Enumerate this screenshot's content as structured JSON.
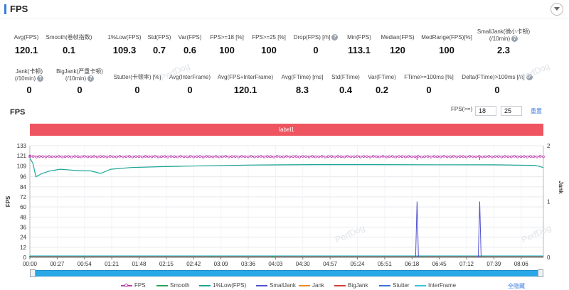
{
  "header": {
    "title": "FPS"
  },
  "stats_row1": [
    {
      "label": "Avg(FPS)",
      "value": "120.1",
      "help": false
    },
    {
      "label": "Smooth(卷帧指数)",
      "value": "0.1",
      "help": false
    },
    {
      "label": "1%Low(FPS)",
      "value": "109.3",
      "help": false
    },
    {
      "label": "Std(FPS)",
      "value": "0.7",
      "help": false
    },
    {
      "label": "Var(FPS)",
      "value": "0.6",
      "help": false
    },
    {
      "label": "FPS>=18 [%]",
      "value": "100",
      "help": false
    },
    {
      "label": "FPS>=25 [%]",
      "value": "100",
      "help": false
    },
    {
      "label": "Drop(FPS) [/h]",
      "value": "0",
      "help": true
    },
    {
      "label": "Min(FPS)",
      "value": "113.1",
      "help": false
    },
    {
      "label": "Median(FPS)",
      "value": "120",
      "help": false
    },
    {
      "label": "MedRange(FPS)[%]",
      "value": "100",
      "help": false
    },
    {
      "label": "SmallJank(微小卡顿)",
      "label2": "(/10min)",
      "value": "2.3",
      "help": true
    }
  ],
  "stats_row2": [
    {
      "label": "Jank(卡顿)",
      "label2": "(/10min)",
      "value": "0",
      "help": true
    },
    {
      "label": "BigJank(严重卡顿)",
      "label2": "(/10min)",
      "value": "0",
      "help": true
    },
    {
      "label": "Stutter(卡顿率) [%]",
      "value": "0",
      "help": false
    },
    {
      "label": "Avg(InterFrame)",
      "value": "0",
      "help": false
    },
    {
      "label": "Avg(FPS+InterFrame)",
      "value": "120.1",
      "help": false
    },
    {
      "label": "Avg(FTime) [ms]",
      "value": "8.3",
      "help": false
    },
    {
      "label": "Std(FTime)",
      "value": "0.4",
      "help": false
    },
    {
      "label": "Var(FTime)",
      "value": "0.2",
      "help": false
    },
    {
      "label": "FTime>=100ms [%]",
      "value": "0",
      "help": false
    },
    {
      "label": "Delta(FTime)>100ms [/h]",
      "value": "0",
      "help": true
    }
  ],
  "chart_section": {
    "title": "FPS",
    "filter_label": "FPS(>=)",
    "filter_value_1": "18",
    "filter_value_2": "25",
    "reset_label": "重置",
    "label_bar": "label1",
    "hide_all": "全隐藏",
    "watermark": "PerfDog"
  },
  "chart_data": {
    "type": "line",
    "ylabel_left": "FPS",
    "ylabel_right": "Jank",
    "y_left_ticks": [
      "0",
      "12",
      "24",
      "36",
      "48",
      "60",
      "72",
      "84",
      "96",
      "109",
      "121",
      "133"
    ],
    "y_left_range": [
      0,
      133
    ],
    "y_right_ticks": [
      "0",
      "1",
      "2"
    ],
    "y_right_range": [
      0,
      2
    ],
    "x_ticks": [
      "00:00",
      "00:27",
      "00:54",
      "01:21",
      "01:48",
      "02:15",
      "02:42",
      "03:09",
      "03:36",
      "04:03",
      "04:30",
      "04:57",
      "05:24",
      "05:51",
      "06:18",
      "06:45",
      "07:12",
      "07:39",
      "08:06"
    ],
    "x_range_seconds": [
      0,
      508
    ],
    "series": [
      {
        "name": "FPS",
        "color": "#c03fb0",
        "marker": true,
        "approx_value": 120
      },
      {
        "name": "Smooth",
        "color": "#2aa55a",
        "marker": false,
        "approx_value": 0
      },
      {
        "name": "1%Low(FPS)",
        "color": "#1aa596",
        "marker": false,
        "x": [
          0,
          3,
          6,
          12,
          20,
          30,
          40,
          50,
          60,
          70,
          80,
          100,
          130,
          170,
          220,
          280,
          340,
          400,
          460,
          500,
          508
        ],
        "values": [
          118,
          112,
          96,
          100,
          103,
          105,
          104,
          103,
          103,
          100,
          105,
          107,
          108,
          109,
          110,
          110.5,
          110.5,
          110.3,
          110.2,
          109.5,
          107
        ]
      },
      {
        "name": "SmallJank",
        "color": "#5050d0",
        "marker": false,
        "spikes": [
          {
            "x": 383,
            "value": 1
          },
          {
            "x": 445,
            "value": 1
          }
        ]
      },
      {
        "name": "Jank",
        "color": "#f08a20",
        "marker": false,
        "approx_value": 0
      },
      {
        "name": "BigJank",
        "color": "#d83a3a",
        "marker": false,
        "approx_value": 0
      },
      {
        "name": "Stutter",
        "color": "#3a6fd8",
        "marker": false,
        "approx_value": 0
      },
      {
        "name": "InterFrame",
        "color": "#35c5d5",
        "marker": false,
        "approx_value": 0
      }
    ],
    "fps_dips_x": [
      383,
      445
    ],
    "grid": true,
    "legend_position": "bottom"
  }
}
